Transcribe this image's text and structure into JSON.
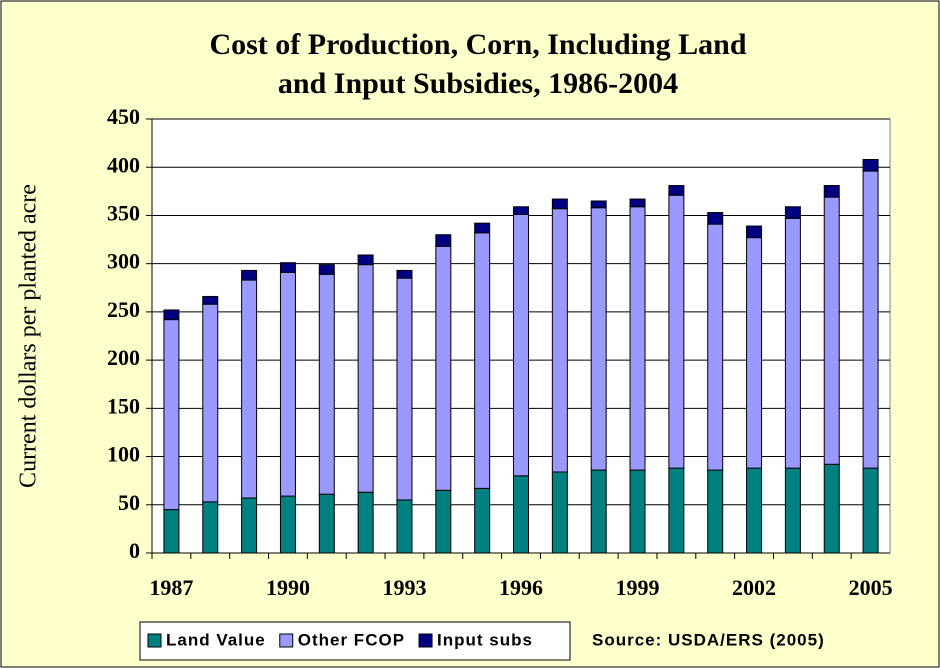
{
  "chart_data": {
    "type": "stacked_bar",
    "title": [
      "Cost of Production, Corn, Including Land",
      "and Input Subsidies, 1986-2004"
    ],
    "y_label": "Current dollars per planted acre",
    "source": "Source: USDA/ERS (2005)",
    "categories": [
      "1987",
      null,
      null,
      "1990",
      null,
      null,
      "1993",
      null,
      null,
      "1996",
      null,
      null,
      "1999",
      null,
      null,
      "2002",
      null,
      null,
      "2005"
    ],
    "series": [
      {
        "name": "Land Value",
        "color": "#008080",
        "values": [
          45,
          53,
          57,
          59,
          61,
          63,
          55,
          65,
          67,
          80,
          84,
          86,
          86,
          88,
          86,
          88,
          88,
          92,
          88
        ]
      },
      {
        "name": "Other FCOP",
        "color": "#9999ff",
        "values": [
          197,
          205,
          226,
          232,
          228,
          236,
          230,
          253,
          265,
          271,
          273,
          272,
          273,
          283,
          255,
          239,
          259,
          277,
          308
        ]
      },
      {
        "name": "Input subs",
        "color": "#000080",
        "values": [
          10,
          8,
          10,
          10,
          10,
          10,
          8,
          12,
          10,
          8,
          10,
          7,
          8,
          10,
          12,
          12,
          12,
          12,
          12
        ]
      }
    ],
    "ylim": [
      0,
      450
    ],
    "yticks": [
      0,
      50,
      100,
      150,
      200,
      250,
      300,
      350,
      400,
      450
    ],
    "grid": true
  }
}
